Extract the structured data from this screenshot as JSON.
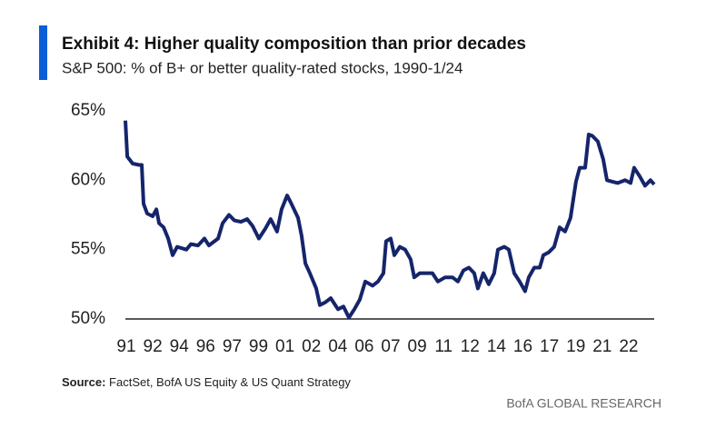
{
  "chart_data": {
    "type": "line",
    "title": "Exhibit 4: Higher quality composition than prior decades",
    "subtitle": "S&P 500: % of B+ or better quality-rated stocks, 1990-1/24",
    "source_label": "Source:",
    "source": "FactSet, BofA US Equity & US Quant Strategy",
    "branding": "BofA GLOBAL RESEARCH",
    "color": "#15256b",
    "xlim": [
      1990,
      2024
    ],
    "xticks": [
      {
        "value": 1990.0,
        "label": "91"
      },
      {
        "value": 1991.7,
        "label": "92"
      },
      {
        "value": 1993.4,
        "label": "94"
      },
      {
        "value": 1995.1,
        "label": "96"
      },
      {
        "value": 1996.8,
        "label": "97"
      },
      {
        "value": 1998.5,
        "label": "99"
      },
      {
        "value": 2000.2,
        "label": "01"
      },
      {
        "value": 2001.9,
        "label": "02"
      },
      {
        "value": 2003.6,
        "label": "04"
      },
      {
        "value": 2005.3,
        "label": "06"
      },
      {
        "value": 2007.0,
        "label": "07"
      },
      {
        "value": 2008.7,
        "label": "09"
      },
      {
        "value": 2010.4,
        "label": "11"
      },
      {
        "value": 2012.1,
        "label": "12"
      },
      {
        "value": 2013.8,
        "label": "14"
      },
      {
        "value": 2015.5,
        "label": "16"
      },
      {
        "value": 2017.2,
        "label": "17"
      },
      {
        "value": 2018.9,
        "label": "19"
      },
      {
        "value": 2020.6,
        "label": "21"
      },
      {
        "value": 2022.3,
        "label": "22"
      }
    ],
    "ylim": [
      50,
      65
    ],
    "yticks": [
      {
        "value": 50,
        "label": "50%"
      },
      {
        "value": 55,
        "label": "55%"
      },
      {
        "value": 60,
        "label": "60%"
      },
      {
        "value": 65,
        "label": "65%"
      }
    ],
    "x": [
      1990.0,
      1990.12,
      1990.47,
      1990.88,
      1991.05,
      1991.17,
      1991.4,
      1991.75,
      1991.99,
      1992.17,
      1992.46,
      1992.75,
      1993.04,
      1993.33,
      1993.92,
      1994.21,
      1994.67,
      1995.08,
      1995.37,
      1995.96,
      1996.25,
      1996.66,
      1997.01,
      1997.42,
      1997.83,
      1998.18,
      1998.58,
      1998.99,
      1999.34,
      1999.75,
      2000.04,
      2000.4,
      2000.63,
      2001.1,
      2001.33,
      2001.57,
      2001.86,
      2002.27,
      2002.5,
      2002.85,
      2003.2,
      2003.67,
      2004.02,
      2004.37,
      2004.72,
      2005.07,
      2005.42,
      2005.89,
      2006.24,
      2006.59,
      2006.76,
      2007.06,
      2007.29,
      2007.64,
      2007.99,
      2008.34,
      2008.57,
      2008.93,
      2009.39,
      2009.74,
      2010.09,
      2010.56,
      2011.03,
      2011.38,
      2011.73,
      2012.08,
      2012.43,
      2012.66,
      2013.01,
      2013.36,
      2013.71,
      2013.95,
      2014.36,
      2014.65,
      2015.0,
      2015.35,
      2015.7,
      2015.93,
      2016.29,
      2016.64,
      2016.87,
      2017.22,
      2017.57,
      2017.92,
      2018.27,
      2018.62,
      2018.97,
      2019.21,
      2019.56,
      2019.79,
      2020.02,
      2020.37,
      2020.72,
      2020.96,
      2021.31,
      2021.66,
      2022.13,
      2022.48,
      2022.71,
      2023.06,
      2023.41,
      2023.76,
      2024.0
    ],
    "values": [
      64.3,
      61.7,
      61.2,
      61.1,
      61.1,
      58.3,
      57.6,
      57.4,
      57.9,
      56.9,
      56.6,
      55.8,
      54.6,
      55.2,
      55.0,
      55.4,
      55.3,
      55.8,
      55.3,
      55.8,
      56.9,
      57.5,
      57.1,
      57.0,
      57.2,
      56.7,
      55.8,
      56.5,
      57.2,
      56.3,
      57.9,
      58.9,
      58.4,
      57.3,
      56.0,
      54.0,
      53.3,
      52.2,
      51.0,
      51.2,
      51.5,
      50.7,
      50.9,
      50.1,
      50.7,
      51.4,
      52.7,
      52.4,
      52.7,
      53.3,
      55.6,
      55.8,
      54.6,
      55.2,
      55.0,
      54.3,
      53.0,
      53.3,
      53.3,
      53.3,
      52.7,
      53.0,
      53.0,
      52.7,
      53.5,
      53.7,
      53.3,
      52.2,
      53.3,
      52.5,
      53.3,
      55.0,
      55.2,
      55.0,
      53.3,
      52.7,
      52.0,
      53.0,
      53.7,
      53.7,
      54.6,
      54.8,
      55.2,
      56.6,
      56.3,
      57.3,
      59.9,
      60.9,
      60.9,
      63.3,
      63.2,
      62.8,
      61.5,
      60.0,
      59.9,
      59.8,
      60.0,
      59.8,
      60.9,
      60.3,
      59.6,
      60.0,
      59.7
    ]
  }
}
